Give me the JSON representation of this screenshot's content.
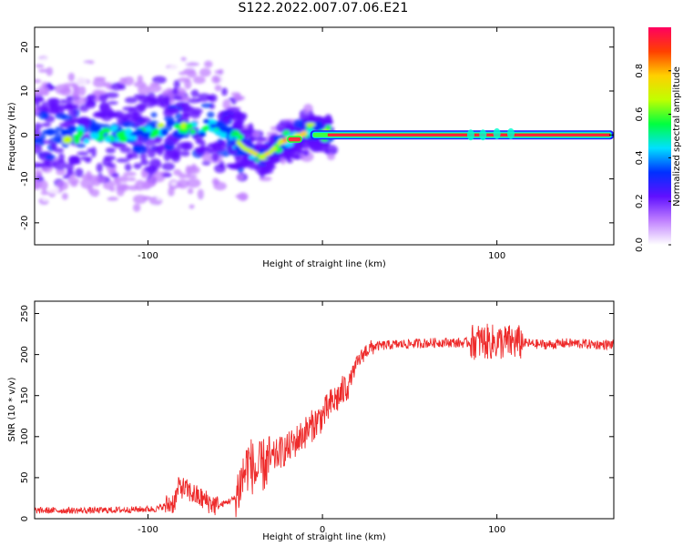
{
  "title": "S122.2022.007.07.06.E21",
  "chart_data": [
    {
      "type": "heatmap",
      "xlabel": "Height of straight line (km)",
      "ylabel": "Frequency (Hz)",
      "xlim": [
        -165,
        167
      ],
      "ylim": [
        -25,
        24.5
      ],
      "x_ticks": [
        -100,
        0,
        100
      ],
      "x_tick_labels": [
        "-100",
        "",
        "100"
      ],
      "y_ticks": [
        -20,
        -10,
        0,
        10,
        20
      ],
      "y_tick_labels": [
        "-20",
        "-10",
        "0",
        "10",
        "20"
      ],
      "colorbar": {
        "label": "Normalized spectral amplitude",
        "range": [
          0,
          1
        ],
        "ticks": [
          0,
          0.2,
          0.4,
          0.6,
          0.8
        ],
        "tick_labels": [
          "0.0",
          "0.2",
          "0.4",
          "0.6",
          "0.8"
        ],
        "colors": [
          "#ffffff",
          "#c080ff",
          "#6010ff",
          "#0030ff",
          "#00e0ff",
          "#00ff40",
          "#c0ff00",
          "#ffd000",
          "#ff4000",
          "#ff0060"
        ]
      },
      "ridge": {
        "x": [
          -165,
          -150,
          -130,
          -110,
          -95,
          -85,
          -75,
          -65,
          -55,
          -45,
          -40,
          -35,
          -30,
          -25,
          -20,
          -15,
          -12,
          -8,
          -5,
          0,
          5,
          20,
          50,
          80,
          100,
          120,
          167
        ],
        "frequency": [
          0,
          0,
          0,
          0,
          1,
          2,
          1,
          2,
          1,
          -3,
          -4,
          -5,
          -4,
          -2,
          -1,
          -1,
          0,
          1,
          1,
          0.5,
          0,
          0,
          0,
          0,
          0,
          0,
          0
        ]
      },
      "grid": false
    },
    {
      "type": "line",
      "xlabel": "Height of straight line (km)",
      "ylabel": "SNR (10 * v/v)",
      "xlim": [
        -165,
        167
      ],
      "ylim": [
        0,
        265
      ],
      "x_ticks": [
        -100,
        0,
        100
      ],
      "x_tick_labels": [
        "-100",
        "0",
        "100"
      ],
      "y_ticks": [
        0,
        50,
        100,
        150,
        200,
        250
      ],
      "y_tick_labels": [
        "0",
        "50",
        "100",
        "150",
        "200",
        "250"
      ],
      "series": [
        {
          "color": "#ee2a2a",
          "x": [
            -165,
            -150,
            -130,
            -110,
            -95,
            -85,
            -82,
            -78,
            -70,
            -60,
            -50,
            -45,
            -42,
            -38,
            -34,
            -30,
            -25,
            -20,
            -15,
            -10,
            -5,
            0,
            5,
            10,
            15,
            20,
            25,
            30,
            40,
            50,
            60,
            70,
            80,
            90,
            100,
            110,
            120,
            130,
            140,
            150,
            160,
            167
          ],
          "y": [
            10,
            10,
            10,
            11,
            12,
            20,
            40,
            35,
            25,
            15,
            25,
            55,
            70,
            55,
            65,
            70,
            80,
            85,
            95,
            105,
            115,
            125,
            140,
            150,
            165,
            190,
            205,
            210,
            212,
            213,
            214,
            215,
            214,
            216,
            215,
            215,
            213,
            212,
            214,
            213,
            212,
            212
          ]
        }
      ],
      "grid": false
    }
  ]
}
